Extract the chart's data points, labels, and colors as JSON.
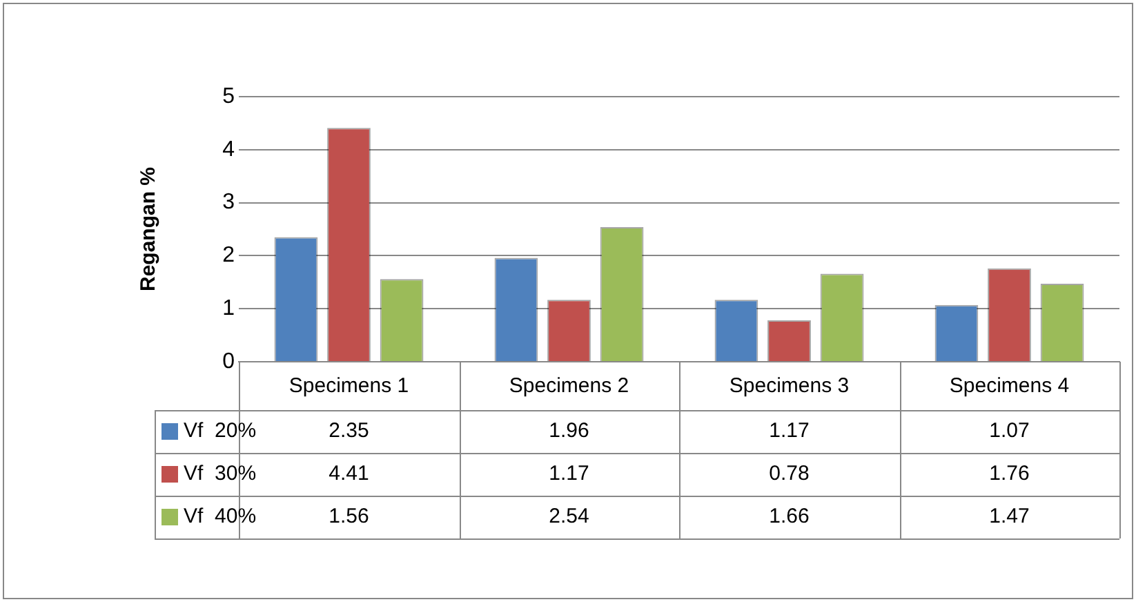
{
  "chart_data": {
    "type": "bar",
    "ylabel": "Regangan %",
    "categories": [
      "Specimens 1",
      "Specimens 2",
      "Specimens 3",
      "Specimens 4"
    ],
    "series": [
      {
        "name": "Vf  20%",
        "color": "#4f81bd",
        "values": [
          2.35,
          1.96,
          1.17,
          1.07
        ]
      },
      {
        "name": "Vf  30%",
        "color": "#c0504d",
        "values": [
          4.41,
          1.17,
          0.78,
          1.76
        ]
      },
      {
        "name": "Vf  40%",
        "color": "#9bbb59",
        "values": [
          1.56,
          2.54,
          1.66,
          1.47
        ]
      }
    ],
    "ylim": [
      0,
      5
    ],
    "yticks": [
      0,
      1,
      2,
      3,
      4,
      5
    ],
    "grid": "y",
    "legend": "bottom",
    "data_labels": true
  }
}
